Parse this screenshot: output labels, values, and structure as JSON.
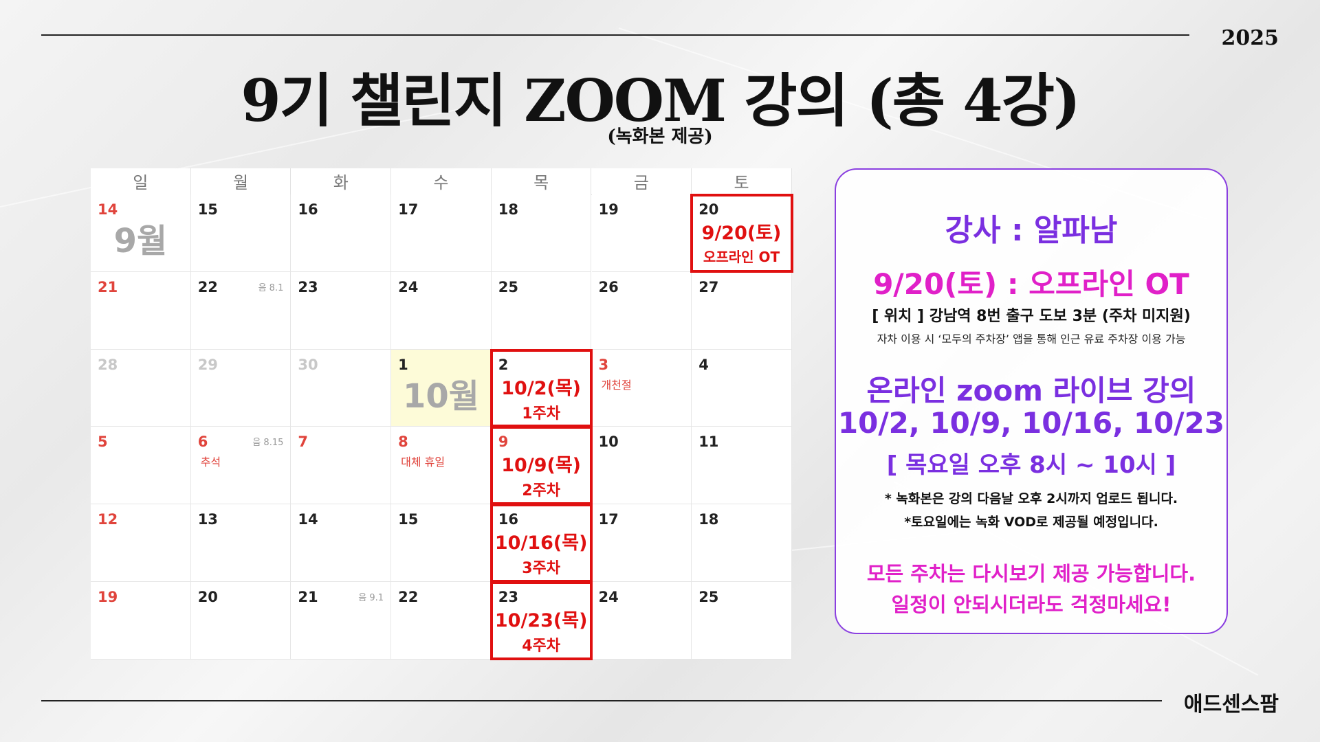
{
  "header": {
    "year": "2025",
    "title": "9기 챌린지 ZOOM 강의 (총 4강)",
    "subtitle": "(녹화본 제공)"
  },
  "brand": "애드센스팜",
  "calendar": {
    "weekdays": [
      "일",
      "월",
      "화",
      "수",
      "목",
      "금",
      "토"
    ],
    "weeks": [
      [
        {
          "d": "14",
          "c": "red",
          "month": "9월"
        },
        {
          "d": "15"
        },
        {
          "d": "16"
        },
        {
          "d": "17"
        },
        {
          "d": "18"
        },
        {
          "d": "19"
        },
        {
          "d": "20",
          "ev1": "9/20(토)",
          "ev2": "오프라인 OT"
        }
      ],
      [
        {
          "d": "21",
          "c": "red"
        },
        {
          "d": "22",
          "lunar": "음 8.1"
        },
        {
          "d": "23"
        },
        {
          "d": "24"
        },
        {
          "d": "25"
        },
        {
          "d": "26"
        },
        {
          "d": "27"
        }
      ],
      [
        {
          "d": "28",
          "c": "gray"
        },
        {
          "d": "29",
          "c": "gray"
        },
        {
          "d": "30",
          "c": "gray"
        },
        {
          "d": "1",
          "month": "10월",
          "hl": true
        },
        {
          "d": "2",
          "ev1": "10/2(목)",
          "ev2": "1주차"
        },
        {
          "d": "3",
          "c": "red",
          "hol": "개천절"
        },
        {
          "d": "4"
        }
      ],
      [
        {
          "d": "5",
          "c": "red"
        },
        {
          "d": "6",
          "c": "red",
          "lunar": "음 8.15",
          "hol": "추석"
        },
        {
          "d": "7",
          "c": "red"
        },
        {
          "d": "8",
          "c": "red",
          "hol": "대체 휴일"
        },
        {
          "d": "9",
          "c": "red",
          "ev1": "10/9(목)",
          "ev2": "2주차"
        },
        {
          "d": "10"
        },
        {
          "d": "11"
        }
      ],
      [
        {
          "d": "12",
          "c": "red"
        },
        {
          "d": "13"
        },
        {
          "d": "14"
        },
        {
          "d": "15"
        },
        {
          "d": "16",
          "ev1": "10/16(목)",
          "ev2": "3주차"
        },
        {
          "d": "17"
        },
        {
          "d": "18"
        }
      ],
      [
        {
          "d": "19",
          "c": "red"
        },
        {
          "d": "20"
        },
        {
          "d": "21",
          "lunar": "음 9.1"
        },
        {
          "d": "22"
        },
        {
          "d": "23",
          "ev1": "10/23(목)",
          "ev2": "4주차"
        },
        {
          "d": "24"
        },
        {
          "d": "25"
        }
      ]
    ]
  },
  "panel": {
    "instructor": "강사 : 알파남",
    "ot": "9/20(토) : 오프라인 OT",
    "location": "[ 위치 ] 강남역 8번 출구 도보 3분  (주차 미지원)",
    "parking": "자차 이용 시 ‘모두의 주차장’ 앱을 통해 인근 유료 주차장 이용 가능",
    "online_title": "온라인 zoom 라이브 강의",
    "online_dates": "10/2, 10/9, 10/16, 10/23",
    "online_time": "[ 목요일 오후 8시 ~ 10시 ]",
    "note1": "* 녹화본은 강의 다음날 오후 2시까지 업로드 됩니다.",
    "note2": "*토요일에는 녹화 VOD로 제공될 예정입니다.",
    "review1": "모든 주차는 다시보기 제공 가능합니다.",
    "review2": "일정이 안되시더라도 걱정마세요!"
  },
  "colors": {
    "event_red": "#e01010",
    "holiday_red": "#e0443c",
    "purple": "#7a2fe0",
    "magenta": "#e020c8",
    "highlight": "#fdfbd8"
  }
}
